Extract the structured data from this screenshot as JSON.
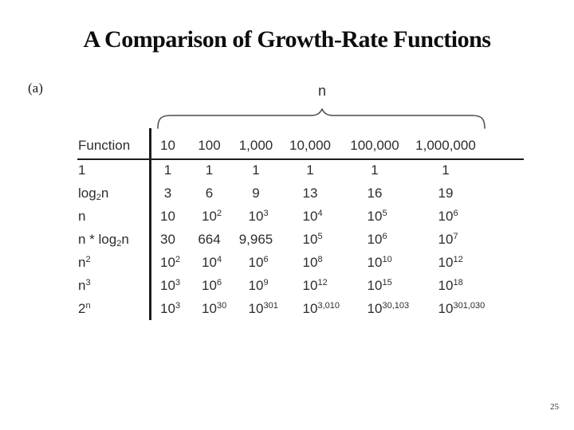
{
  "slide": {
    "figure_label": "(a)",
    "page_number": "25"
  },
  "chart_data": {
    "type": "table",
    "title": "A Comparison of Growth-Rate Functions",
    "group_header_label": "n",
    "columns": [
      "Function",
      "10",
      "100",
      "1,000",
      "10,000",
      "100,000",
      "1,000,000"
    ],
    "rows": [
      {
        "function": "1",
        "values": [
          "1",
          "1",
          "1",
          "1",
          "1",
          "1"
        ]
      },
      {
        "function": "log_2n",
        "values": [
          "3",
          "6",
          "9",
          "13",
          "16",
          "19"
        ]
      },
      {
        "function": "n",
        "values": [
          "10",
          "10^2",
          "10^3",
          "10^4",
          "10^5",
          "10^6"
        ]
      },
      {
        "function": "n * log_2n",
        "values": [
          "30",
          "664",
          "9,965",
          "10^5",
          "10^6",
          "10^7"
        ]
      },
      {
        "function": "n^2",
        "values": [
          "10^2",
          "10^4",
          "10^6",
          "10^8",
          "10^10",
          "10^12"
        ]
      },
      {
        "function": "n^3",
        "values": [
          "10^3",
          "10^6",
          "10^9",
          "10^12",
          "10^15",
          "10^18"
        ]
      },
      {
        "function": "2^n",
        "values": [
          "10^3",
          "10^30",
          "10^301",
          "10^3,010",
          "10^30,103",
          "10^301,030"
        ]
      }
    ]
  }
}
